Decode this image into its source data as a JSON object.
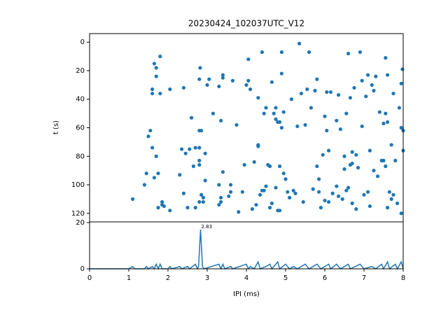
{
  "chart_data": [
    {
      "type": "scatter",
      "title": "20230424_102037UTC_V12",
      "ylabel": "t (s)",
      "color": "#1f77b4",
      "xlim": [
        0,
        8
      ],
      "ylim": [
        126,
        -6
      ],
      "yticks": [
        0,
        20,
        40,
        60,
        80,
        100,
        120
      ],
      "x": [
        1.1,
        1.4,
        1.45,
        1.5,
        1.55,
        1.6,
        1.6,
        1.6,
        1.65,
        1.65,
        1.7,
        1.7,
        1.7,
        1.75,
        1.75,
        1.8,
        1.8,
        1.85,
        1.85,
        1.9,
        2.05,
        2.05,
        2.3,
        2.35,
        2.4,
        2.4,
        2.45,
        2.5,
        2.55,
        2.6,
        2.65,
        2.7,
        2.7,
        2.8,
        2.8,
        2.8,
        2.8,
        2.8,
        2.8,
        2.82,
        2.85,
        2.85,
        2.9,
        2.9,
        2.95,
        2.95,
        3.0,
        3.05,
        3.15,
        3.3,
        3.3,
        3.3,
        3.35,
        3.35,
        3.35,
        3.4,
        3.4,
        3.4,
        3.55,
        3.6,
        3.6,
        3.65,
        3.75,
        3.8,
        3.9,
        3.95,
        4.0,
        4.05,
        4.05,
        4.1,
        4.15,
        4.2,
        4.25,
        4.3,
        4.3,
        4.3,
        4.35,
        4.4,
        4.4,
        4.45,
        4.45,
        4.5,
        4.5,
        4.55,
        4.6,
        4.6,
        4.65,
        4.65,
        4.7,
        4.75,
        4.75,
        4.75,
        4.8,
        4.8,
        4.85,
        4.85,
        4.85,
        4.9,
        4.9,
        4.9,
        4.95,
        4.95,
        5.0,
        5.05,
        5.1,
        5.15,
        5.2,
        5.25,
        5.3,
        5.35,
        5.4,
        5.45,
        5.5,
        5.55,
        5.6,
        5.65,
        5.7,
        5.75,
        5.8,
        5.8,
        5.85,
        5.85,
        5.9,
        5.95,
        6.0,
        6.0,
        6.05,
        6.05,
        6.1,
        6.1,
        6.15,
        6.2,
        6.3,
        6.3,
        6.35,
        6.35,
        6.4,
        6.45,
        6.5,
        6.5,
        6.55,
        6.55,
        6.6,
        6.6,
        6.65,
        6.65,
        6.7,
        6.7,
        6.7,
        6.75,
        6.8,
        6.8,
        6.85,
        6.9,
        6.95,
        6.95,
        7.0,
        7.05,
        7.1,
        7.1,
        7.15,
        7.15,
        7.2,
        7.25,
        7.25,
        7.3,
        7.35,
        7.4,
        7.45,
        7.5,
        7.55,
        7.55,
        7.6,
        7.6,
        7.6,
        7.7,
        7.7,
        7.75,
        7.75,
        7.8,
        7.85,
        7.9,
        7.95,
        7.95,
        8.0,
        7.98,
        8.0,
        7.95,
        7.5,
        7.65,
        7.55
      ],
      "values": [
        110,
        100,
        92,
        66,
        62,
        74,
        33,
        36,
        95,
        15,
        18,
        24,
        80,
        116,
        92,
        10,
        36,
        112,
        114,
        115,
        33,
        118,
        93,
        75,
        32,
        106,
        78,
        116,
        75,
        53,
        87,
        74,
        116,
        112,
        62,
        83,
        86,
        74,
        26,
        18,
        62,
        107,
        112,
        109,
        97,
        78,
        30,
        26,
        50,
        31,
        100,
        114,
        109,
        112,
        55,
        25,
        23,
        91,
        108,
        100,
        105,
        27,
        58,
        119,
        105,
        86,
        30,
        27,
        12,
        33,
        117,
        84,
        114,
        39,
        72,
        73,
        107,
        104,
        7,
        50,
        104,
        46,
        101,
        86,
        116,
        87,
        113,
        28,
        50,
        54,
        102,
        46,
        56,
        118,
        56,
        118,
        87,
        7,
        60,
        22,
        49,
        92,
        96,
        105,
        109,
        40,
        104,
        106,
        59,
        1,
        36,
        112,
        58,
        33,
        7,
        46,
        103,
        34,
        26,
        87,
        96,
        105,
        116,
        79,
        111,
        52,
        35,
        62,
        76,
        112,
        35,
        106,
        101,
        55,
        37,
        108,
        61,
        110,
        80,
        89,
        50,
        104,
        102,
        8,
        86,
        39,
        113,
        77,
        85,
        32,
        79,
        117,
        88,
        7,
        59,
        27,
        107,
        38,
        105,
        23,
        76,
        115,
        30,
        90,
        34,
        24,
        94,
        49,
        83,
        57,
        11,
        50,
        23,
        116,
        56,
        72,
        110,
        107,
        36,
        83,
        113,
        46,
        60,
        29,
        62,
        19,
        76,
        120,
        83,
        105,
        87
      ]
    },
    {
      "type": "line",
      "xlabel": "IPI (ms)",
      "color": "#1f77b4",
      "xlim": [
        0,
        8
      ],
      "ylim": [
        0,
        20.3
      ],
      "xticks": [
        0,
        1,
        2,
        3,
        4,
        5,
        6,
        7,
        8
      ],
      "yticks": [
        0,
        20
      ],
      "x": [
        0,
        1.0,
        1.1,
        1.15,
        1.4,
        1.45,
        1.5,
        1.6,
        1.65,
        1.7,
        1.75,
        1.8,
        1.85,
        2.0,
        2.05,
        2.1,
        2.3,
        2.35,
        2.5,
        2.55,
        2.7,
        2.75,
        2.78,
        2.83,
        2.88,
        2.92,
        3.3,
        3.35,
        3.4,
        3.45,
        3.6,
        3.65,
        4.0,
        4.05,
        4.1,
        4.2,
        4.3,
        4.35,
        4.5,
        4.6,
        4.65,
        4.8,
        4.85,
        5.0,
        5.1,
        5.2,
        5.3,
        5.5,
        5.6,
        5.8,
        5.9,
        6.1,
        6.15,
        6.3,
        6.4,
        6.6,
        6.65,
        6.9,
        7.0,
        7.2,
        7.3,
        7.45,
        7.5,
        7.6,
        7.65,
        7.8,
        7.85,
        7.95,
        8.0
      ],
      "values": [
        0,
        0,
        1,
        0,
        0,
        1,
        0,
        1,
        0,
        2,
        0,
        2,
        0,
        0,
        1,
        0,
        1,
        0,
        1,
        0,
        2,
        0,
        1,
        17,
        1,
        0,
        2,
        0,
        2,
        0,
        1,
        0,
        2,
        0,
        1,
        0,
        3,
        0,
        1,
        2,
        0,
        3,
        0,
        2,
        0,
        1,
        0,
        2,
        0,
        2,
        0,
        2,
        0,
        2,
        0,
        2,
        0,
        2,
        0,
        1,
        0,
        2,
        0,
        3,
        0,
        2,
        0,
        3,
        0
      ],
      "annotation": {
        "text": "2.83",
        "x": 2.83,
        "y": 17
      }
    }
  ]
}
